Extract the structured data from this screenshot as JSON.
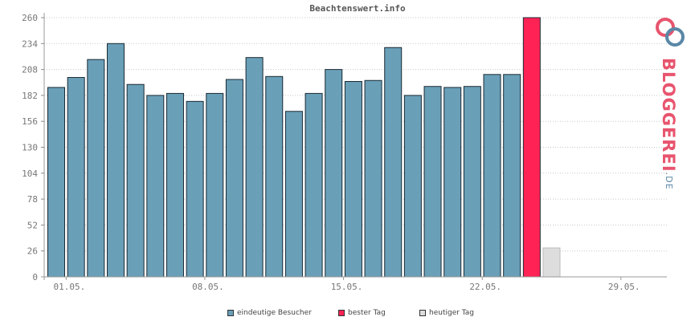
{
  "chart_data": {
    "type": "bar",
    "title": "Beachtenswert.info",
    "yticks": [
      0,
      26,
      52,
      78,
      104,
      130,
      156,
      182,
      208,
      234,
      260
    ],
    "ylim": [
      0,
      260
    ],
    "xticks": [
      "01.05.",
      "08.05.",
      "15.05.",
      "22.05.",
      "29.05."
    ],
    "grid": true,
    "series": [
      {
        "name": "eindeutige Besucher",
        "color": "#6a9fb8",
        "values": [
          190,
          200,
          218,
          234,
          193,
          182,
          184,
          176,
          184,
          198,
          220,
          201,
          166,
          184,
          208,
          196,
          197,
          230,
          182,
          191,
          190,
          191,
          203,
          203
        ]
      },
      {
        "name": "bester Tag",
        "color": "#ff2255",
        "values": [
          260
        ]
      },
      {
        "name": "heutiger Tag",
        "color": "#dddddd",
        "values": [
          29
        ]
      }
    ]
  },
  "brand": {
    "name": "BLOGGEREI",
    "suffix": ".DE"
  }
}
